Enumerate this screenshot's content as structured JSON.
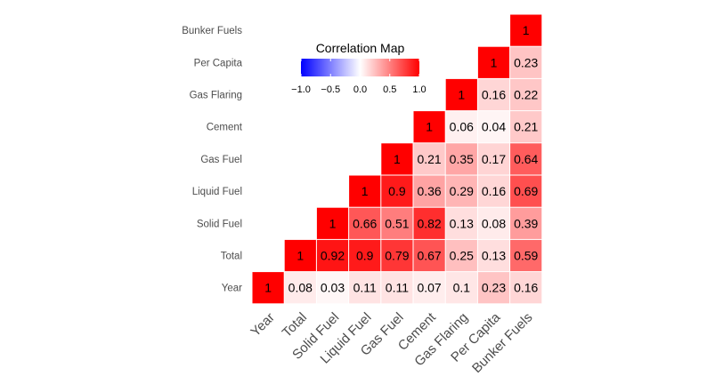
{
  "chart_data": {
    "type": "heatmap",
    "title": "",
    "variables": [
      "Year",
      "Total",
      "Solid Fuel",
      "Liquid Fuel",
      "Gas Fuel",
      "Cement",
      "Gas Flaring",
      "Per Capita",
      "Bunker Fuels"
    ],
    "matrix": [
      [
        1,
        0.08,
        0.03,
        0.11,
        0.11,
        0.07,
        0.1,
        0.23,
        0.16
      ],
      [
        0.08,
        1,
        0.92,
        0.9,
        0.79,
        0.67,
        0.25,
        0.13,
        0.59
      ],
      [
        0.03,
        0.92,
        1,
        0.66,
        0.51,
        0.82,
        0.13,
        0.08,
        0.39
      ],
      [
        0.11,
        0.9,
        0.66,
        1,
        0.9,
        0.36,
        0.29,
        0.16,
        0.69
      ],
      [
        0.11,
        0.79,
        0.51,
        0.9,
        1,
        0.21,
        0.35,
        0.17,
        0.64
      ],
      [
        0.07,
        0.67,
        0.82,
        0.36,
        0.21,
        1,
        0.06,
        0.04,
        0.21
      ],
      [
        0.1,
        0.25,
        0.13,
        0.29,
        0.35,
        0.06,
        1,
        0.16,
        0.22
      ],
      [
        0.23,
        0.13,
        0.08,
        0.16,
        0.17,
        0.04,
        0.16,
        1,
        0.23
      ],
      [
        0.16,
        0.59,
        0.39,
        0.69,
        0.64,
        0.21,
        0.22,
        0.23,
        1
      ]
    ],
    "display": "upper-triangle",
    "legend": {
      "title": "Correlation Map",
      "ticks": [
        "−1.0",
        "−0.5",
        "0.0",
        "0.5",
        "1.0"
      ],
      "tick_values": [
        -1,
        -0.5,
        0,
        0.5,
        1
      ],
      "range": [
        -1,
        1
      ],
      "colors": {
        "low": "#0000ff",
        "mid": "#ffffff",
        "high": "#ff0000"
      },
      "placement": "top-left"
    }
  }
}
